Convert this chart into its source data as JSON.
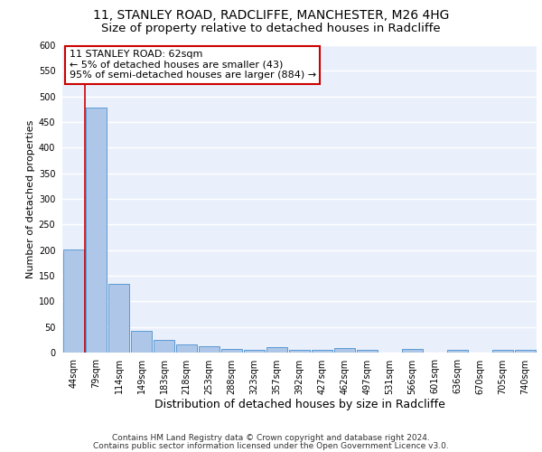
{
  "title1": "11, STANLEY ROAD, RADCLIFFE, MANCHESTER, M26 4HG",
  "title2": "Size of property relative to detached houses in Radcliffe",
  "xlabel": "Distribution of detached houses by size in Radcliffe",
  "ylabel": "Number of detached properties",
  "footer1": "Contains HM Land Registry data © Crown copyright and database right 2024.",
  "footer2": "Contains public sector information licensed under the Open Government Licence v3.0.",
  "annotation_title": "11 STANLEY ROAD: 62sqm",
  "annotation_line1": "← 5% of detached houses are smaller (43)",
  "annotation_line2": "95% of semi-detached houses are larger (884) →",
  "bar_labels": [
    "44sqm",
    "79sqm",
    "114sqm",
    "149sqm",
    "183sqm",
    "218sqm",
    "253sqm",
    "288sqm",
    "323sqm",
    "357sqm",
    "392sqm",
    "427sqm",
    "462sqm",
    "497sqm",
    "531sqm",
    "566sqm",
    "601sqm",
    "636sqm",
    "670sqm",
    "705sqm",
    "740sqm"
  ],
  "bar_values": [
    202,
    478,
    134,
    43,
    25,
    16,
    12,
    7,
    6,
    11,
    6,
    5,
    8,
    5,
    0,
    7,
    0,
    5,
    0,
    5,
    5
  ],
  "bar_color": "#aec6e8",
  "bar_edge_color": "#5b9bd5",
  "ylim": [
    0,
    600
  ],
  "yticks": [
    0,
    50,
    100,
    150,
    200,
    250,
    300,
    350,
    400,
    450,
    500,
    550,
    600
  ],
  "background_color": "#eaf0fb",
  "grid_color": "#ffffff",
  "annotation_box_facecolor": "#ffffff",
  "annotation_box_edgecolor": "#cc0000",
  "title1_fontsize": 10,
  "title2_fontsize": 9.5,
  "xlabel_fontsize": 9,
  "ylabel_fontsize": 8,
  "tick_fontsize": 7,
  "annotation_fontsize": 8,
  "footer_fontsize": 6.5
}
